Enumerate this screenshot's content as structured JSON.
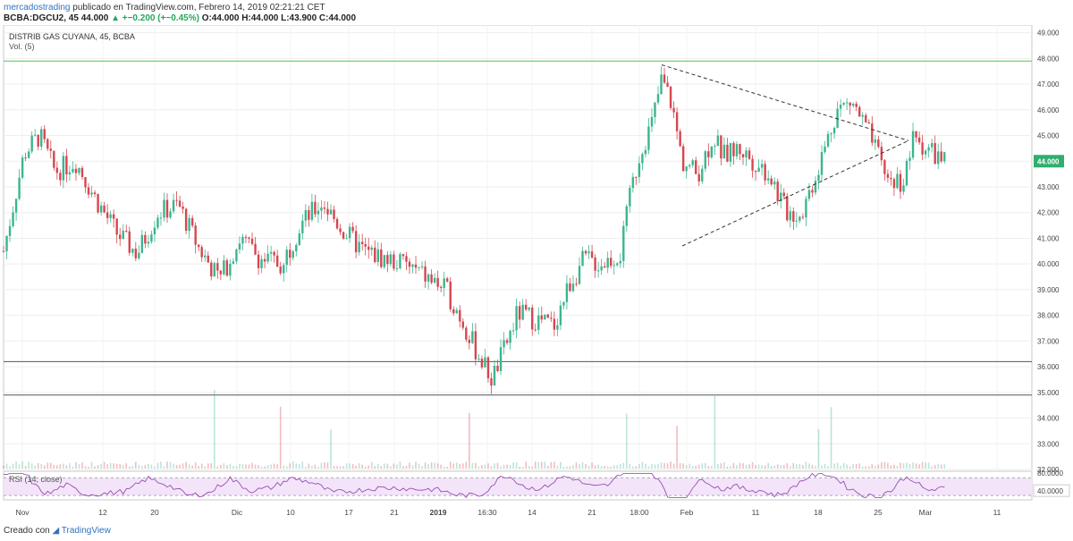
{
  "header": {
    "author": "mercadostrading",
    "published": "publicado en TradingView.com, Febrero 14, 2019 02:21:21 CET",
    "symbol": "BCBA:DGCU2, 45",
    "last": "44.000",
    "change": "▲ +−0.200 (+−0.45%)",
    "open": "O:44.000",
    "high": "H:44.000",
    "low": "L:43.900",
    "close": "C:44.000"
  },
  "legend": {
    "name": "DISTRIB GAS CUYANA, 45, BCBA",
    "vol": "Vol. (5)",
    "rsi": "RSI (14, close)"
  },
  "footer": {
    "created": "Creado con",
    "brand": "TradingView"
  },
  "colors": {
    "up": "#3bb58f",
    "down": "#d6464f",
    "rsi": "#8e3fa8",
    "rsi_band": "#f3e4fa",
    "hline": "#4cc94c",
    "pricebox": "#2eaf6e"
  },
  "chart_data": {
    "type": "candlestick",
    "y_ticks": [
      "49.000",
      "48.000",
      "47.000",
      "46.000",
      "45.000",
      "44.000",
      "43.000",
      "42.000",
      "41.000",
      "40.000",
      "39.000",
      "38.000",
      "37.000",
      "36.000",
      "35.000",
      "34.000",
      "33.000",
      "32.000"
    ],
    "ylim": [
      32.0,
      49.3
    ],
    "x_ticks": [
      "Nov",
      "12",
      "20",
      "Dic",
      "10",
      "17",
      "21",
      "2019",
      "16:30",
      "14",
      "21",
      "18:00",
      "Feb",
      "11",
      "18",
      "25",
      "Mar",
      "11"
    ],
    "current_price_label": "44.000",
    "last_price": 44.0,
    "horizontal_lines": [
      47.9,
      36.2,
      34.9
    ],
    "triangle": {
      "upper_start": {
        "x_index": 0.64,
        "price": 47.75
      },
      "upper_end": {
        "x_index": 0.88,
        "price": 44.8
      },
      "lower_start": {
        "x_index": 0.66,
        "price": 40.7
      },
      "lower_end": {
        "x_index": 0.88,
        "price": 44.8
      }
    },
    "price_path": [
      [
        0,
        40.5
      ],
      [
        0.02,
        44.3
      ],
      [
        0.035,
        45.0
      ],
      [
        0.05,
        43.6
      ],
      [
        0.07,
        44.0
      ],
      [
        0.09,
        42.5
      ],
      [
        0.11,
        41.2
      ],
      [
        0.13,
        40.4
      ],
      [
        0.15,
        42.0
      ],
      [
        0.17,
        42.3
      ],
      [
        0.19,
        40.6
      ],
      [
        0.21,
        39.4
      ],
      [
        0.23,
        41.0
      ],
      [
        0.25,
        40.2
      ],
      [
        0.27,
        40.0
      ],
      [
        0.29,
        41.6
      ],
      [
        0.31,
        42.4
      ],
      [
        0.33,
        41.3
      ],
      [
        0.35,
        40.5
      ],
      [
        0.37,
        40.2
      ],
      [
        0.39,
        40.0
      ],
      [
        0.41,
        39.5
      ],
      [
        0.43,
        39.0
      ],
      [
        0.445,
        37.9
      ],
      [
        0.46,
        36.6
      ],
      [
        0.475,
        35.5
      ],
      [
        0.49,
        37.0
      ],
      [
        0.5,
        38.1
      ],
      [
        0.52,
        37.8
      ],
      [
        0.535,
        37.6
      ],
      [
        0.55,
        39.2
      ],
      [
        0.565,
        40.2
      ],
      [
        0.58,
        40.0
      ],
      [
        0.6,
        40.4
      ],
      [
        0.61,
        42.8
      ],
      [
        0.62,
        44.5
      ],
      [
        0.63,
        45.4
      ],
      [
        0.64,
        47.2
      ],
      [
        0.65,
        46.2
      ],
      [
        0.66,
        44.0
      ],
      [
        0.675,
        43.5
      ],
      [
        0.69,
        45.0
      ],
      [
        0.7,
        44.2
      ],
      [
        0.715,
        44.5
      ],
      [
        0.73,
        44.0
      ],
      [
        0.745,
        43.5
      ],
      [
        0.76,
        42.1
      ],
      [
        0.775,
        41.9
      ],
      [
        0.79,
        43.5
      ],
      [
        0.8,
        44.7
      ],
      [
        0.81,
        46.0
      ],
      [
        0.825,
        46.3
      ],
      [
        0.84,
        45.2
      ],
      [
        0.85,
        44.2
      ],
      [
        0.86,
        43.3
      ],
      [
        0.875,
        43.2
      ],
      [
        0.885,
        44.9
      ],
      [
        0.895,
        44.6
      ],
      [
        0.905,
        44.3
      ],
      [
        0.915,
        44.0
      ]
    ],
    "rsi_levels": [
      "80.0000",
      "40.0000"
    ],
    "rsi_bounds": [
      30,
      70
    ]
  }
}
